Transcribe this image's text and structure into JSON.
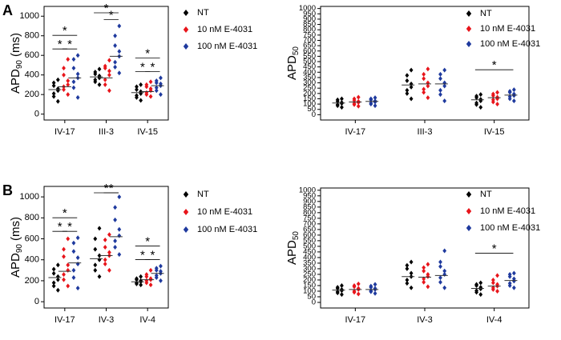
{
  "chart_data": [
    {
      "type": "strip",
      "panel_label": "A",
      "y_label": {
        "main": "APD",
        "sub": "90",
        "unit": "(ms)"
      },
      "categories": [
        "IV-17",
        "III-3",
        "IV-15"
      ],
      "ylim": [
        -60,
        1100
      ],
      "yticks": [
        0,
        200,
        400,
        600,
        800,
        1000
      ],
      "series": [
        {
          "name": "NT",
          "color": "#000000",
          "values": [
            [
              130,
              180,
              210,
              240,
              260,
              290,
              320,
              350
            ],
            [
              300,
              330,
              350,
              370,
              390,
              410,
              430,
              460
            ],
            [
              140,
              170,
              190,
              210,
              230,
              250,
              280,
              300
            ]
          ],
          "means": [
            250,
            380,
            220
          ]
        },
        {
          "name": "10 nM E-4031",
          "color": "#e8151b",
          "values": [
            [
              200,
              250,
              280,
              300,
              340,
              400,
              470,
              560
            ],
            [
              240,
              300,
              350,
              400,
              440,
              470,
              490,
              550
            ],
            [
              180,
              200,
              220,
              240,
              260,
              280,
              300,
              330
            ]
          ],
          "means": [
            280,
            370,
            230
          ]
        },
        {
          "name": "100 nM E-4031",
          "color": "#1f3a9e",
          "values": [
            [
              170,
              270,
              330,
              370,
              410,
              470,
              560,
              600
            ],
            [
              420,
              480,
              530,
              590,
              640,
              700,
              800,
              900
            ],
            [
              200,
              240,
              270,
              290,
              310,
              320,
              340,
              370
            ]
          ],
          "means": [
            370,
            590,
            290
          ]
        }
      ],
      "significance": [
        {
          "label": "*",
          "category": 0,
          "from": 0,
          "to": 1
        },
        {
          "label": "*",
          "category": 0,
          "from": 1,
          "to": 2
        },
        {
          "label": "*",
          "category": 0,
          "from": 0,
          "to": 2
        },
        {
          "label": "*",
          "category": 1,
          "from": 1,
          "to": 2
        },
        {
          "label": "*",
          "category": 1,
          "from": 0,
          "to": 2
        },
        {
          "label": "*",
          "category": 2,
          "from": 0,
          "to": 1
        },
        {
          "label": "*",
          "category": 2,
          "from": 1,
          "to": 2
        },
        {
          "label": "*",
          "category": 2,
          "from": 0,
          "to": 2
        }
      ]
    },
    {
      "type": "strip",
      "y_label": {
        "main": "APD",
        "sub": "50"
      },
      "categories": [
        "IV-17",
        "III-3",
        "IV-15"
      ],
      "ylim": [
        -50,
        1020
      ],
      "yticks": [
        0,
        50,
        100,
        150,
        200,
        250,
        300,
        350,
        400,
        450,
        500,
        550,
        600,
        650,
        700,
        750,
        800,
        850,
        900,
        950,
        1000
      ],
      "series": [
        {
          "name": "NT",
          "color": "#000000",
          "values": [
            [
              70,
              85,
              95,
              105,
              115,
              125,
              140,
              150
            ],
            [
              150,
              200,
              230,
              260,
              290,
              320,
              370,
              420
            ],
            [
              70,
              95,
              110,
              130,
              145,
              160,
              175,
              190
            ]
          ],
          "means": [
            110,
            280,
            140
          ]
        },
        {
          "name": "10 nM E-4031",
          "color": "#e8151b",
          "values": [
            [
              80,
              95,
              105,
              115,
              125,
              135,
              150,
              165
            ],
            [
              160,
              210,
              240,
              270,
              300,
              340,
              380,
              430
            ],
            [
              100,
              120,
              140,
              150,
              165,
              180,
              195,
              210
            ]
          ],
          "means": [
            120,
            290,
            160
          ]
        },
        {
          "name": "100 nM E-4031",
          "color": "#1f3a9e",
          "values": [
            [
              85,
              100,
              110,
              120,
              130,
              140,
              150,
              160
            ],
            [
              130,
              190,
              230,
              270,
              300,
              340,
              380,
              420
            ],
            [
              130,
              150,
              170,
              180,
              195,
              210,
              220,
              235
            ]
          ],
          "means": [
            125,
            290,
            185
          ]
        }
      ],
      "significance": [
        {
          "label": "*",
          "category": 2,
          "from": 0,
          "to": 2
        }
      ]
    },
    {
      "type": "strip",
      "panel_label": "B",
      "y_label": {
        "main": "APD",
        "sub": "90",
        "unit": "(ms)"
      },
      "categories": [
        "IV-17",
        "IV-3",
        "IV-4"
      ],
      "ylim": [
        -60,
        1100
      ],
      "yticks": [
        0,
        200,
        400,
        600,
        800,
        1000
      ],
      "series": [
        {
          "name": "NT",
          "color": "#000000",
          "values": [
            [
              110,
              150,
              180,
              210,
              240,
              270,
              310,
              350
            ],
            [
              240,
              300,
              350,
              400,
              440,
              500,
              600,
              700
            ],
            [
              160,
              170,
              180,
              190,
              200,
              210,
              220,
              240
            ]
          ],
          "means": [
            230,
            410,
            190
          ]
        },
        {
          "name": "10 nM E-4031",
          "color": "#e8151b",
          "values": [
            [
              150,
              210,
              260,
              300,
              350,
              430,
              500,
              600
            ],
            [
              300,
              360,
              400,
              440,
              470,
              520,
              590,
              640
            ],
            [
              160,
              180,
              200,
              210,
              220,
              240,
              260,
              300
            ]
          ],
          "means": [
            290,
            440,
            210
          ]
        },
        {
          "name": "100 nM E-4031",
          "color": "#1f3a9e",
          "values": [
            [
              130,
              230,
              300,
              360,
              420,
              480,
              560,
              610
            ],
            [
              450,
              520,
              580,
              630,
              690,
              780,
              900,
              1000
            ],
            [
              200,
              230,
              250,
              270,
              290,
              300,
              320,
              340
            ]
          ],
          "means": [
            370,
            620,
            270
          ]
        }
      ],
      "significance": [
        {
          "label": "*",
          "category": 0,
          "from": 0,
          "to": 1
        },
        {
          "label": "*",
          "category": 0,
          "from": 1,
          "to": 2
        },
        {
          "label": "*",
          "category": 0,
          "from": 0,
          "to": 2
        },
        {
          "label": "*",
          "category": 1,
          "from": 1,
          "to": 2
        },
        {
          "label": "*",
          "category": 1,
          "from": 0,
          "to": 2
        },
        {
          "label": "*",
          "category": 2,
          "from": 0,
          "to": 1
        },
        {
          "label": "*",
          "category": 2,
          "from": 1,
          "to": 2
        },
        {
          "label": "*",
          "category": 2,
          "from": 0,
          "to": 2
        }
      ]
    },
    {
      "type": "strip",
      "y_label": {
        "main": "APD",
        "sub": "50"
      },
      "categories": [
        "IV-17",
        "IV-3",
        "IV-4"
      ],
      "ylim": [
        -50,
        1020
      ],
      "yticks": [
        0,
        50,
        100,
        150,
        200,
        250,
        300,
        350,
        400,
        450,
        500,
        550,
        600,
        650,
        700,
        750,
        800,
        850,
        900,
        950,
        1000
      ],
      "series": [
        {
          "name": "NT",
          "color": "#000000",
          "values": [
            [
              70,
              85,
              95,
              105,
              115,
              125,
              135,
              150
            ],
            [
              130,
              170,
              200,
              230,
              260,
              300,
              330,
              360
            ],
            [
              70,
              90,
              105,
              120,
              135,
              150,
              160,
              175
            ]
          ],
          "means": [
            110,
            230,
            125
          ]
        },
        {
          "name": "10 nM E-4031",
          "color": "#e8151b",
          "values": [
            [
              75,
              90,
              100,
              115,
              125,
              140,
              150,
              165
            ],
            [
              140,
              180,
              210,
              230,
              250,
              280,
              310,
              340
            ],
            [
              100,
              115,
              130,
              145,
              160,
              175,
              200,
              240
            ]
          ],
          "means": [
            115,
            225,
            145
          ]
        },
        {
          "name": "100 nM E-4031",
          "color": "#1f3a9e",
          "values": [
            [
              80,
              95,
              105,
              115,
              125,
              135,
              145,
              160
            ],
            [
              130,
              180,
              220,
              250,
              280,
              320,
              360,
              460
            ],
            [
              130,
              150,
              170,
              190,
              210,
              230,
              250,
              260
            ]
          ],
          "means": [
            115,
            240,
            195
          ]
        }
      ],
      "significance": [
        {
          "label": "*",
          "category": 2,
          "from": 0,
          "to": 2
        }
      ]
    }
  ]
}
